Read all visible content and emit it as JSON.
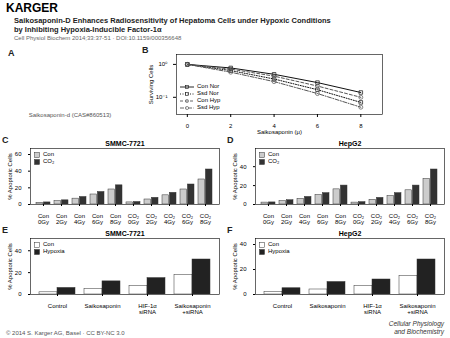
{
  "title": "Saikosaponin-D Enhances Radiosensitivity of Hepatoma Cells under Hypoxic Conditions\nby Inhibiting Hypoxia-Inducible Factor-1α",
  "subtitle": "Cell Physiol Biochem 2014;33:37-51 · DOI:10.1159/000356648",
  "annotations": [
    "KARGER",
    "A",
    "Saikosaponin-d (CAS#860513)",
    "© 2014 S. Karger AG, Basel · CC BY-NC 3.0",
    "Cellular Physiology",
    "and Biochemistry"
  ],
  "chart_data": [
    {
      "type": "line",
      "annotations": [
        "B"
      ],
      "xlabel": "Saikosaponin (μ)",
      "ylabel": "Surviving Cells",
      "x": [
        0,
        2,
        4,
        6,
        8
      ],
      "xlim": [
        -0.5,
        9
      ],
      "xticks": [
        0,
        2,
        4,
        6,
        8
      ],
      "ylim": [
        0.03,
        2
      ],
      "yticks": [
        {
          "value": 0.1,
          "label": "10⁻¹"
        },
        {
          "value": 1,
          "label": "10⁰"
        }
      ],
      "log": "y",
      "legend": "lower left",
      "series": [
        {
          "name": "Con Nor",
          "color": "#111111",
          "line_style": "solid",
          "marker": "square",
          "values": [
            1.0,
            0.78,
            0.5,
            0.28,
            0.14
          ]
        },
        {
          "name": "Ssd Nor",
          "color": "#111111",
          "line_style": "dotted",
          "marker": "square",
          "values": [
            1.0,
            0.65,
            0.36,
            0.17,
            0.07
          ]
        },
        {
          "name": "Con Hyp",
          "color": "#555555",
          "line_style": "dashed",
          "marker": "circle",
          "values": [
            1.0,
            0.72,
            0.44,
            0.22,
            0.1
          ]
        },
        {
          "name": "Ssd Hyp",
          "color": "#555555",
          "line_style": "dashdot",
          "marker": "circle",
          "values": [
            1.0,
            0.58,
            0.3,
            0.13,
            0.05
          ]
        }
      ]
    },
    {
      "type": "bar",
      "title": "SMMC-7721",
      "annotations": [
        "C"
      ],
      "ylabel": "% Apoptotic Cells",
      "categories": [
        "Con\n0Gy",
        "Con\n2Gy",
        "Con\n4Gy",
        "Con\n6Gy",
        "Con\n8Gy",
        "CO₂\n0Gy",
        "CO₂\n2Gy",
        "CO₂\n4Gy",
        "CO₂\n6Gy",
        "CO₂\n8Gy"
      ],
      "ylim": [
        0,
        67.2
      ],
      "yticks": [
        0,
        20,
        40,
        60
      ],
      "legend": "upper left",
      "series": [
        {
          "name": "Con",
          "color": "#cccccc",
          "values": [
            2,
            4,
            7,
            12,
            18,
            2.5,
            6,
            11,
            18,
            30
          ]
        },
        {
          "name": "CO₂",
          "color": "#333333",
          "values": [
            2.5,
            5,
            9,
            15,
            23,
            3,
            8,
            14,
            24,
            42
          ]
        }
      ]
    },
    {
      "type": "bar",
      "title": "HepG2",
      "annotations": [
        "D"
      ],
      "ylabel": "% Apoptotic Cells",
      "categories": [
        "Con\n0Gy",
        "Con\n2Gy",
        "Con\n4Gy",
        "Con\n6Gy",
        "Con\n8Gy",
        "CO₂\n0Gy",
        "CO₂\n2Gy",
        "CO₂\n4Gy",
        "CO₂\n6Gy",
        "CO₂\n8Gy"
      ],
      "ylim": [
        0,
        59.2
      ],
      "yticks": [
        0,
        20,
        40
      ],
      "legend": "upper left",
      "series": [
        {
          "name": "Con",
          "color": "#cccccc",
          "values": [
            2,
            3.5,
            6,
            10,
            16,
            2,
            5,
            9,
            15,
            27
          ]
        },
        {
          "name": "CO₂",
          "color": "#333333",
          "values": [
            2.2,
            4.5,
            8,
            12,
            20,
            2.5,
            7,
            12,
            20,
            37
          ]
        }
      ]
    },
    {
      "type": "bar",
      "title": "SMMC-7721",
      "annotations": [
        "E"
      ],
      "ylabel": "% Apoptotic Cells",
      "categories": [
        "Control",
        "Saikosaponin",
        "HIF-1α\nsiRNA",
        "Saikosaponin\n+siRNA"
      ],
      "ylim": [
        0,
        51.2
      ],
      "yticks": [
        0,
        20,
        40
      ],
      "legend": "upper left",
      "series": [
        {
          "name": "Con",
          "color": "#ffffff",
          "values": [
            2,
            5,
            8,
            18
          ]
        },
        {
          "name": "Hypoxia",
          "color": "#222222",
          "values": [
            6,
            12,
            15,
            32
          ]
        }
      ]
    },
    {
      "type": "bar",
      "title": "HepG2",
      "annotations": [
        "F"
      ],
      "ylabel": "% Apoptotic Cells",
      "categories": [
        "Control",
        "Saikosaponin",
        "HIF-1α\nsiRNA",
        "Saikosaponin\n+siRNA"
      ],
      "ylim": [
        0,
        44.8
      ],
      "yticks": [
        0,
        20,
        40
      ],
      "legend": "upper left",
      "series": [
        {
          "name": "Con",
          "color": "#ffffff",
          "values": [
            2,
            4,
            7,
            15
          ]
        },
        {
          "name": "Hypoxia",
          "color": "#222222",
          "values": [
            5,
            10,
            12,
            28
          ]
        }
      ]
    }
  ]
}
